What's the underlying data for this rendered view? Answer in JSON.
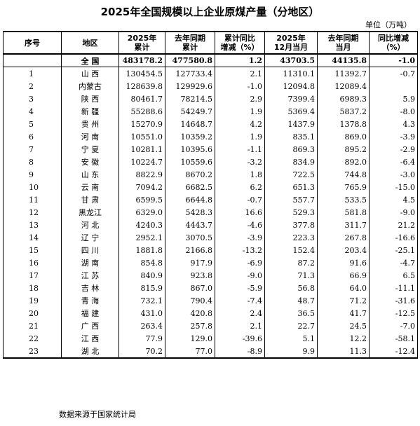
{
  "title": "2025年全国规模以上企业原煤产量（分地区）",
  "unit": "单位（万吨）",
  "headers": {
    "col1": [
      "序号"
    ],
    "col2": [
      "地区"
    ],
    "col3": [
      "2025年",
      "累计"
    ],
    "col4": [
      "去年同期",
      "累计"
    ],
    "col5": [
      "累计同比",
      "增减（%）"
    ],
    "col6": [
      "2025年",
      "12月当月"
    ],
    "col7": [
      "去年同期",
      "当月"
    ],
    "col8": [
      "同比增减",
      "（%）"
    ]
  },
  "total": {
    "region": "全  国",
    "ytd": "483178.2",
    "prev_ytd": "477580.8",
    "ytd_change": "1.2",
    "month": "43703.5",
    "prev_month": "44135.8",
    "month_change": "-1.0"
  },
  "rows": [
    {
      "idx": "1",
      "region": "山  西",
      "ytd": "130454.5",
      "prev_ytd": "127733.4",
      "ytd_change": "2.1",
      "month": "11310.1",
      "prev_month": "11392.7",
      "month_change": "-0.7"
    },
    {
      "idx": "2",
      "region": "内蒙古",
      "ytd": "128639.8",
      "prev_ytd": "129929.6",
      "ytd_change": "-1.0",
      "month": "12094.8",
      "prev_month": "12089.4",
      "month_change": ""
    },
    {
      "idx": "3",
      "region": "陕  西",
      "ytd": "80461.7",
      "prev_ytd": "78214.5",
      "ytd_change": "2.9",
      "month": "7399.4",
      "prev_month": "6989.3",
      "month_change": "5.9"
    },
    {
      "idx": "4",
      "region": "新  疆",
      "ytd": "55288.6",
      "prev_ytd": "54249.7",
      "ytd_change": "1.9",
      "month": "5369.4",
      "prev_month": "5837.2",
      "month_change": "-8.0"
    },
    {
      "idx": "5",
      "region": "贵  州",
      "ytd": "15270.9",
      "prev_ytd": "14648.7",
      "ytd_change": "4.2",
      "month": "1437.9",
      "prev_month": "1378.8",
      "month_change": "4.3"
    },
    {
      "idx": "6",
      "region": "河  南",
      "ytd": "10551.0",
      "prev_ytd": "10359.2",
      "ytd_change": "1.9",
      "month": "835.1",
      "prev_month": "869.0",
      "month_change": "-3.9"
    },
    {
      "idx": "7",
      "region": "宁  夏",
      "ytd": "10281.1",
      "prev_ytd": "10395.6",
      "ytd_change": "-1.1",
      "month": "869.3",
      "prev_month": "895.2",
      "month_change": "-2.9"
    },
    {
      "idx": "8",
      "region": "安  徽",
      "ytd": "10224.7",
      "prev_ytd": "10559.6",
      "ytd_change": "-3.2",
      "month": "834.9",
      "prev_month": "892.0",
      "month_change": "-6.4"
    },
    {
      "idx": "9",
      "region": "山  东",
      "ytd": "8822.9",
      "prev_ytd": "8670.2",
      "ytd_change": "1.8",
      "month": "722.5",
      "prev_month": "744.8",
      "month_change": "-3.0"
    },
    {
      "idx": "10",
      "region": "云  南",
      "ytd": "7094.2",
      "prev_ytd": "6682.5",
      "ytd_change": "6.2",
      "month": "651.3",
      "prev_month": "765.9",
      "month_change": "-15.0"
    },
    {
      "idx": "11",
      "region": "甘  肃",
      "ytd": "6599.5",
      "prev_ytd": "6644.8",
      "ytd_change": "-0.7",
      "month": "557.7",
      "prev_month": "533.5",
      "month_change": "4.5"
    },
    {
      "idx": "12",
      "region": "黑龙江",
      "ytd": "6329.0",
      "prev_ytd": "5428.3",
      "ytd_change": "16.6",
      "month": "529.3",
      "prev_month": "581.8",
      "month_change": "-9.0"
    },
    {
      "idx": "13",
      "region": "河  北",
      "ytd": "4240.3",
      "prev_ytd": "4443.7",
      "ytd_change": "-4.6",
      "month": "377.8",
      "prev_month": "311.7",
      "month_change": "21.2"
    },
    {
      "idx": "14",
      "region": "辽  宁",
      "ytd": "2952.1",
      "prev_ytd": "3070.5",
      "ytd_change": "-3.9",
      "month": "223.3",
      "prev_month": "267.8",
      "month_change": "-16.6"
    },
    {
      "idx": "15",
      "region": "四  川",
      "ytd": "1881.8",
      "prev_ytd": "2166.8",
      "ytd_change": "-13.2",
      "month": "152.4",
      "prev_month": "203.4",
      "month_change": "-25.1"
    },
    {
      "idx": "16",
      "region": "湖  南",
      "ytd": "854.8",
      "prev_ytd": "917.9",
      "ytd_change": "-6.9",
      "month": "87.2",
      "prev_month": "91.6",
      "month_change": "-4.7"
    },
    {
      "idx": "17",
      "region": "江  苏",
      "ytd": "840.9",
      "prev_ytd": "923.8",
      "ytd_change": "-9.0",
      "month": "71.3",
      "prev_month": "66.9",
      "month_change": "6.5"
    },
    {
      "idx": "18",
      "region": "吉  林",
      "ytd": "815.9",
      "prev_ytd": "867.0",
      "ytd_change": "-5.9",
      "month": "56.8",
      "prev_month": "64.0",
      "month_change": "-11.1"
    },
    {
      "idx": "19",
      "region": "青  海",
      "ytd": "732.1",
      "prev_ytd": "790.4",
      "ytd_change": "-7.4",
      "month": "48.7",
      "prev_month": "71.2",
      "month_change": "-31.6"
    },
    {
      "idx": "20",
      "region": "福  建",
      "ytd": "431.0",
      "prev_ytd": "420.8",
      "ytd_change": "2.4",
      "month": "36.5",
      "prev_month": "41.7",
      "month_change": "-12.5"
    },
    {
      "idx": "21",
      "region": "广  西",
      "ytd": "263.4",
      "prev_ytd": "257.8",
      "ytd_change": "2.1",
      "month": "22.7",
      "prev_month": "24.5",
      "month_change": "-7.0"
    },
    {
      "idx": "22",
      "region": "江  西",
      "ytd": "77.9",
      "prev_ytd": "129.0",
      "ytd_change": "-39.6",
      "month": "5.1",
      "prev_month": "12.2",
      "month_change": "-58.1"
    },
    {
      "idx": "23",
      "region": "湖  北",
      "ytd": "70.2",
      "prev_ytd": "77.0",
      "ytd_change": "-8.9",
      "month": "9.9",
      "prev_month": "11.3",
      "month_change": "-12.4"
    }
  ],
  "source": "数据来源于国家统计局"
}
